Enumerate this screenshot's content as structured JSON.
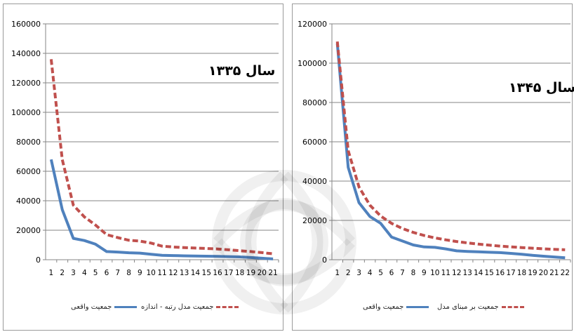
{
  "chart_data": [
    {
      "type": "line",
      "annotation": "سال ۱۳۳۵",
      "x": [
        1,
        2,
        3,
        4,
        5,
        6,
        7,
        8,
        9,
        10,
        11,
        12,
        13,
        14,
        15,
        16,
        17,
        18,
        19,
        20,
        21
      ],
      "ylim": [
        0,
        160000
      ],
      "yticks": [
        0,
        20000,
        40000,
        60000,
        80000,
        100000,
        120000,
        140000,
        160000
      ],
      "ytick_labels": [
        "0",
        "20000",
        "40000",
        "60000",
        "80000",
        "100000",
        "120000",
        "140000",
        "160000"
      ],
      "grid": true,
      "legend_position": "bottom",
      "series": [
        {
          "name": "جمعیت واقعی",
          "color": "#4f81bd",
          "style": "solid",
          "values": [
            68000,
            34000,
            14500,
            13000,
            10500,
            5500,
            5200,
            4700,
            4500,
            3700,
            3000,
            2800,
            2600,
            2500,
            2400,
            2300,
            2100,
            1900,
            1500,
            1000,
            500
          ]
        },
        {
          "name": "جمعیت مدل رتبه - اندازه",
          "color": "#c0504d",
          "style": "dashed",
          "values": [
            136000,
            68000,
            37000,
            29000,
            23500,
            17000,
            15000,
            13200,
            12600,
            11300,
            9200,
            8600,
            8200,
            7900,
            7600,
            7300,
            6700,
            6100,
            5500,
            4800,
            4000
          ]
        }
      ]
    },
    {
      "type": "line",
      "annotation": "سال ۱۳۴۵",
      "x": [
        1,
        2,
        3,
        4,
        5,
        6,
        7,
        8,
        9,
        10,
        11,
        12,
        13,
        14,
        15,
        16,
        17,
        18,
        19,
        20,
        21,
        22
      ],
      "ylim": [
        0,
        120000
      ],
      "yticks": [
        0,
        20000,
        40000,
        60000,
        80000,
        100000,
        120000
      ],
      "ytick_labels": [
        "0",
        "20000",
        "40000",
        "60000",
        "80000",
        "100000",
        "120000"
      ],
      "grid": true,
      "legend_position": "bottom",
      "series": [
        {
          "name": "جمعیت واقعی",
          "color": "#4f81bd",
          "style": "solid",
          "values": [
            110000,
            47000,
            29000,
            22000,
            18500,
            11500,
            9500,
            7500,
            6500,
            6300,
            5500,
            4500,
            4200,
            4000,
            3800,
            3600,
            3200,
            2800,
            2200,
            1800,
            1400,
            1000
          ]
        },
        {
          "name": "جمعیت بر مبنای مدل",
          "color": "#c0504d",
          "style": "dashed",
          "values": [
            111000,
            55500,
            37000,
            27750,
            22200,
            18500,
            15860,
            13880,
            12330,
            11100,
            10090,
            9250,
            8540,
            7930,
            7400,
            6940,
            6530,
            6170,
            5840,
            5550,
            5290,
            5050
          ]
        }
      ]
    }
  ]
}
